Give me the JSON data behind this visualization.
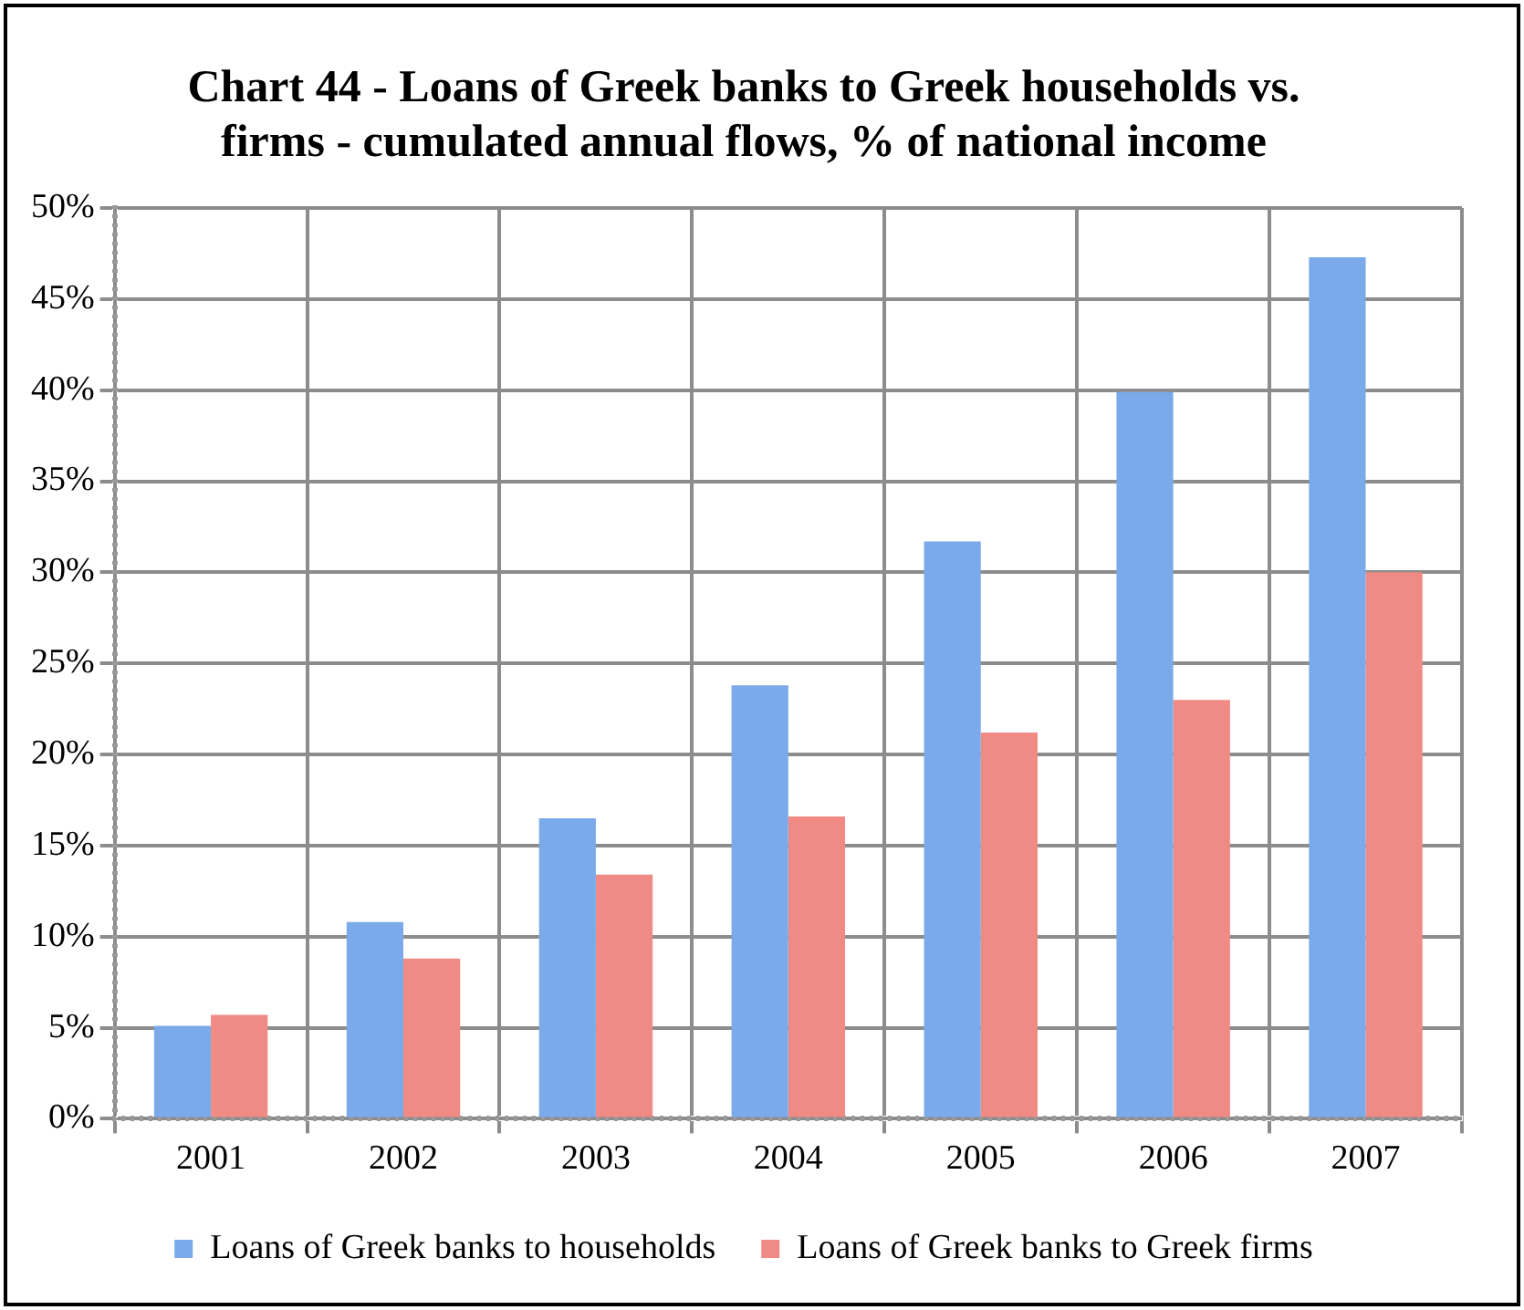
{
  "chart_data": {
    "type": "bar",
    "title": "Chart 44 - Loans of Greek banks to Greek households vs. firms - cumulated annual flows, % of national income",
    "categories": [
      "2001",
      "2002",
      "2003",
      "2004",
      "2005",
      "2006",
      "2007"
    ],
    "series": [
      {
        "name": "Loans of Greek banks to households",
        "color": "#7aaaea",
        "values": [
          5.1,
          10.8,
          16.5,
          23.8,
          31.7,
          39.9,
          47.3
        ]
      },
      {
        "name": "Loans of Greek banks to Greek firms",
        "color": "#f08a84",
        "values": [
          5.7,
          8.8,
          13.4,
          16.6,
          21.2,
          23.0,
          30.0
        ]
      }
    ],
    "ylim": [
      0,
      50
    ],
    "yticks": [
      {
        "value": 0,
        "label": "0%"
      },
      {
        "value": 5,
        "label": "5%"
      },
      {
        "value": 10,
        "label": "10%"
      },
      {
        "value": 15,
        "label": "15%"
      },
      {
        "value": 20,
        "label": "20%"
      },
      {
        "value": 25,
        "label": "25%"
      },
      {
        "value": 30,
        "label": "30%"
      },
      {
        "value": 35,
        "label": "35%"
      },
      {
        "value": 40,
        "label": "40%"
      },
      {
        "value": 45,
        "label": "45%"
      },
      {
        "value": 50,
        "label": "50%"
      }
    ],
    "grid": true,
    "legend": "bottom"
  }
}
